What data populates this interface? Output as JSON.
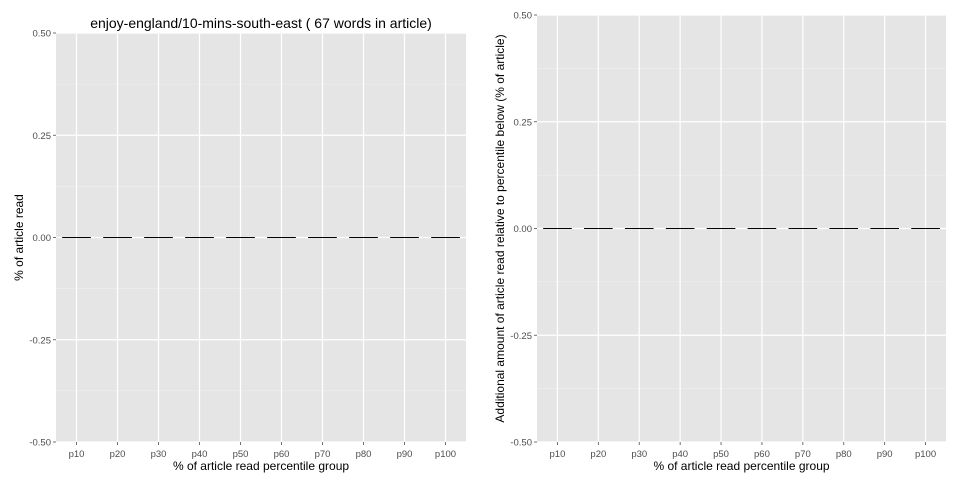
{
  "chart_data": [
    {
      "type": "bar",
      "title": "enjoy-england/10-mins-south-east ( 67 words in article)",
      "xlabel": "% of article read percentile group",
      "ylabel": "% of article read",
      "categories": [
        "p10",
        "p20",
        "p30",
        "p40",
        "p50",
        "p60",
        "p70",
        "p80",
        "p90",
        "p100"
      ],
      "values": [
        0,
        0,
        0,
        0,
        0,
        0,
        0,
        0,
        0,
        0
      ],
      "ylim": [
        -0.5,
        0.5
      ],
      "yticks": [
        0.5,
        0.25,
        0.0,
        -0.25,
        -0.5
      ],
      "ytick_labels": [
        "0.50",
        "0.25",
        "0.00",
        "-0.25",
        "-0.50"
      ],
      "grid": true,
      "background": "#e5e5e5",
      "grid_color": "#ffffff",
      "bar_color": "#000000"
    },
    {
      "type": "bar",
      "title": "",
      "xlabel": "% of article read percentile group",
      "ylabel": "Additional amount of article read relative to percentile below (% of article)",
      "categories": [
        "p10",
        "p20",
        "p30",
        "p40",
        "p50",
        "p60",
        "p70",
        "p80",
        "p90",
        "p100"
      ],
      "values": [
        0,
        0,
        0,
        0,
        0,
        0,
        0,
        0,
        0,
        0
      ],
      "ylim": [
        -0.5,
        0.5
      ],
      "yticks": [
        0.5,
        0.25,
        0.0,
        -0.25,
        -0.5
      ],
      "ytick_labels": [
        "0.50",
        "0.25",
        "0.00",
        "-0.25",
        "-0.50"
      ],
      "grid": true,
      "background": "#e5e5e5",
      "grid_color": "#ffffff",
      "bar_color": "#000000"
    }
  ]
}
